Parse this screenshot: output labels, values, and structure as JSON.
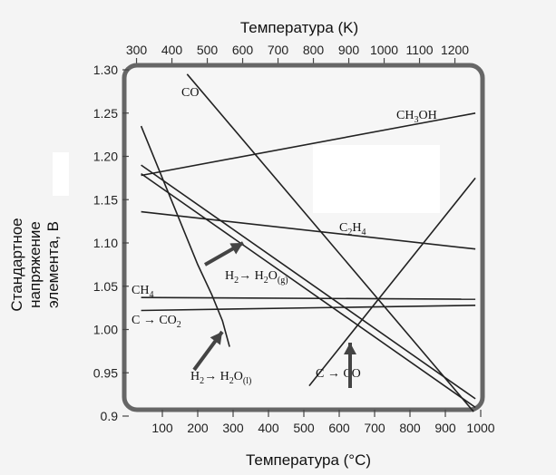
{
  "chart_data": {
    "type": "line",
    "title": "",
    "x_top_label": "Температура (K)",
    "xlabel": "Температура (°C)",
    "ylabel_lines": [
      "Стандартное",
      "напряжение",
      "элемента, В"
    ],
    "ylim": [
      0.9,
      1.3
    ],
    "xlim": [
      0,
      1000
    ],
    "x_bottom_ticks": [
      "100",
      "200",
      "300",
      "400",
      "500",
      "600",
      "700",
      "800",
      "900",
      "1000"
    ],
    "x_top_ticks": [
      "300",
      "400",
      "500",
      "600",
      "700",
      "800",
      "900",
      "1000",
      "1100",
      "1200"
    ],
    "y_ticks": [
      "0.9",
      "0.95",
      "1.00",
      "1.05",
      "1.10",
      "1.15",
      "1.20",
      "1.25",
      "1.30"
    ],
    "series": [
      {
        "name": "CO",
        "x": [
          170,
          980
        ],
        "y": [
          1.295,
          0.905
        ]
      },
      {
        "name": "CH3OH",
        "x": [
          40,
          985
        ],
        "y": [
          1.178,
          1.25
        ]
      },
      {
        "name": "C2H4",
        "x": [
          40,
          985
        ],
        "y": [
          1.136,
          1.093
        ]
      },
      {
        "name": "H2 → H2O(g)",
        "x": [
          40,
          985
        ],
        "y": [
          1.19,
          0.92
        ]
      },
      {
        "name": "CH4",
        "x": [
          40,
          985
        ],
        "y": [
          1.037,
          1.035
        ]
      },
      {
        "name": "C → CO2",
        "x": [
          40,
          985
        ],
        "y": [
          1.022,
          1.028
        ]
      },
      {
        "name": "C → CO",
        "x": [
          515,
          985
        ],
        "y": [
          0.935,
          1.175
        ]
      },
      {
        "name": "H2 → H2O(l)",
        "x": [
          40,
          100,
          150,
          200,
          240,
          270,
          290
        ],
        "y": [
          1.235,
          1.175,
          1.125,
          1.075,
          1.04,
          1.01,
          0.98
        ]
      },
      {
        "name": "",
        "x": [
          40,
          985
        ],
        "y": [
          1.18,
          0.91
        ]
      }
    ],
    "labels": [
      {
        "text_main": "CO",
        "sub": "",
        "tail": ""
      },
      {
        "text_main": "CH",
        "sub": "3",
        "tail": "OH"
      },
      {
        "text_main": "C",
        "sub": "2",
        "tail": "H"
      },
      {
        "text_main": "H",
        "sub": "2",
        "tail": "→ H"
      },
      {
        "text_main": "CH",
        "sub": "4",
        "tail": ""
      },
      {
        "text_main": "C → CO",
        "sub": "2",
        "tail": ""
      },
      {
        "text_main": "C → CO",
        "sub": "",
        "tail": ""
      },
      {
        "text_main": "H",
        "sub": "2",
        "tail": "→ H"
      }
    ]
  }
}
